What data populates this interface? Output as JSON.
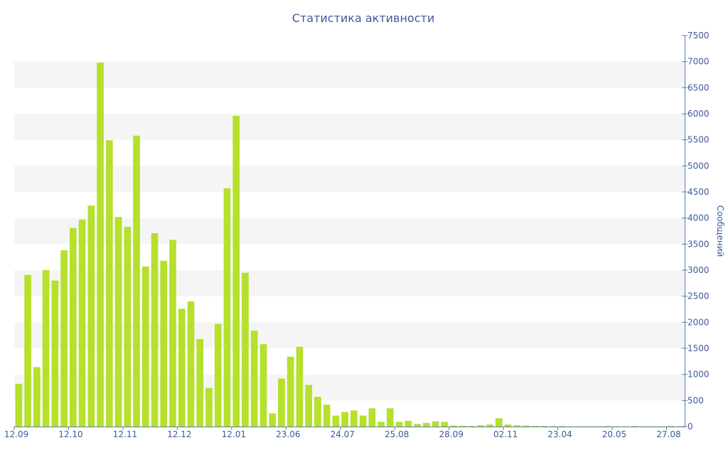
{
  "colors": {
    "bar": "#b5e02c",
    "text": "#3d5a9a",
    "axis": "#5b7bb4",
    "band": "#f5f5f5"
  },
  "chart_data": {
    "type": "bar",
    "title": "Статистика активности",
    "xlabel": "",
    "ylabel": "Сообщений",
    "ylim": [
      0,
      7500
    ],
    "yticks": [
      0,
      500,
      1000,
      1500,
      2000,
      2500,
      3000,
      3500,
      4000,
      4500,
      5000,
      5500,
      6000,
      6500,
      7000,
      7500
    ],
    "y_axis_side": "right",
    "grid": "alternating horizontal bands",
    "legend": "none",
    "x_tick_labels": [
      {
        "index": 0,
        "label": "12.09"
      },
      {
        "index": 6,
        "label": "12.10"
      },
      {
        "index": 12,
        "label": "12.11"
      },
      {
        "index": 18,
        "label": "12.12"
      },
      {
        "index": 24,
        "label": "12.01"
      },
      {
        "index": 30,
        "label": "23.06"
      },
      {
        "index": 36,
        "label": "24.07"
      },
      {
        "index": 42,
        "label": "25.08"
      },
      {
        "index": 48,
        "label": "28.09"
      },
      {
        "index": 54,
        "label": "02.11"
      },
      {
        "index": 60,
        "label": "23.04"
      },
      {
        "index": 66,
        "label": "20.05"
      },
      {
        "index": 72,
        "label": "27.08"
      }
    ],
    "values": [
      820,
      2910,
      1140,
      3000,
      2800,
      3380,
      3810,
      3970,
      4240,
      6980,
      5490,
      4020,
      3830,
      5580,
      3070,
      3710,
      3180,
      3580,
      2260,
      2400,
      1680,
      740,
      1970,
      4570,
      5960,
      2950,
      1840,
      1580,
      250,
      920,
      1340,
      1530,
      800,
      570,
      420,
      210,
      280,
      310,
      210,
      350,
      90,
      350,
      90,
      110,
      50,
      70,
      100,
      90,
      20,
      15,
      10,
      25,
      40,
      160,
      40,
      25,
      20,
      15,
      10,
      10,
      10,
      5,
      5,
      5,
      5,
      10,
      5,
      5,
      10,
      5,
      5,
      5,
      10,
      5
    ]
  }
}
